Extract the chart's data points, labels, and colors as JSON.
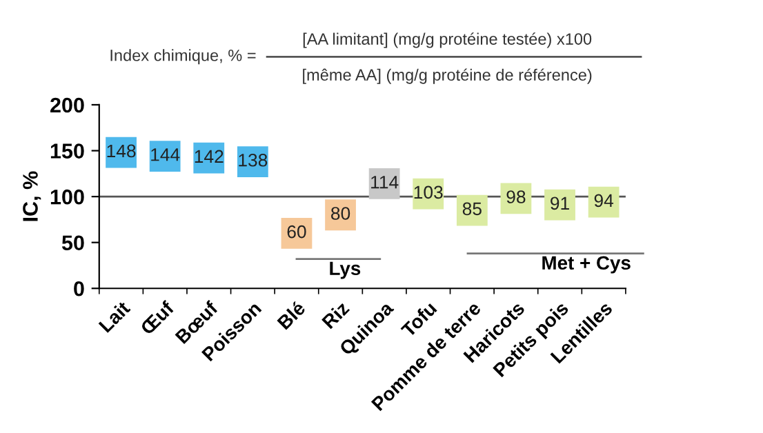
{
  "chart_data": {
    "type": "scatter",
    "title": "Index chimique, % =",
    "ylabel": "IC, %",
    "categories": [
      "Lait",
      "Œuf",
      "Bœuf",
      "Poisson",
      "Blé",
      "Riz",
      "Quinoa",
      "Tofu",
      "Pomme de terre",
      "Haricots",
      "Petits pois",
      "Lentilles"
    ],
    "values": [
      148,
      144,
      142,
      138,
      60,
      80,
      114,
      103,
      85,
      98,
      91,
      94
    ],
    "colors": [
      "#4fb9ec",
      "#4fb9ec",
      "#4fb9ec",
      "#4fb9ec",
      "#f6c899",
      "#f6c899",
      "#c8c8c8",
      "#dbeba2",
      "#dbeba2",
      "#dbeba2",
      "#dbeba2",
      "#dbeba2"
    ],
    "data_labels": true,
    "marker": "square",
    "ylim": [
      0,
      200
    ],
    "yticks": [
      0,
      50,
      100,
      150,
      200
    ],
    "grid": false,
    "ref_lines": [
      {
        "axis": "y",
        "value": 100,
        "color": "#555555"
      }
    ],
    "annotations": [
      "[AA limitant] (mg/g protéine testée) x100",
      "[même AA] (mg/g protéine de référence)",
      "Lys",
      "Met + Cys"
    ]
  }
}
